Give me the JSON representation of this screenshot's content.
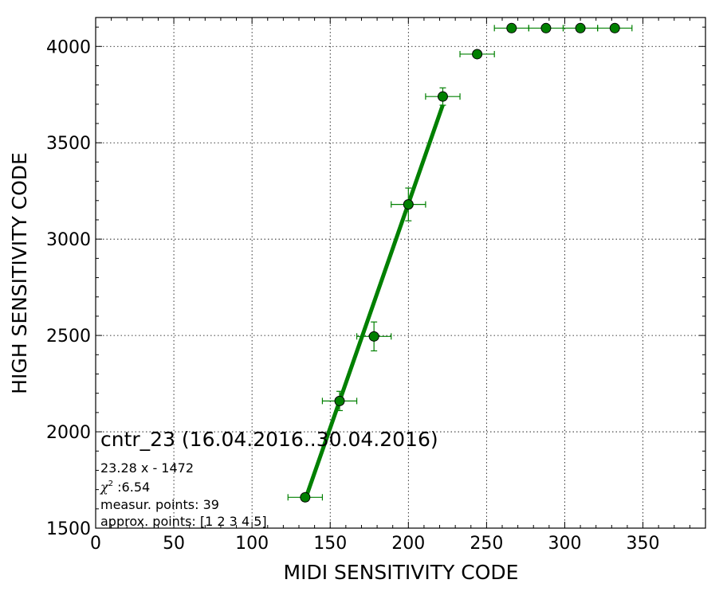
{
  "chart_data": {
    "type": "scatter",
    "xlabel": "MIDI SENSITIVITY CODE",
    "ylabel": "HIGH SENSITIVITY CODE",
    "xlim": [
      0,
      390
    ],
    "ylim": [
      1500,
      4150
    ],
    "xticks": [
      0,
      50,
      100,
      150,
      200,
      250,
      300,
      350
    ],
    "yticks": [
      1500,
      2000,
      2500,
      3000,
      3500,
      4000
    ],
    "grid": true,
    "series": [
      {
        "color": "#008000",
        "marker": "circle",
        "points": [
          {
            "x": 134,
            "y": 1660,
            "xerr": 11,
            "yerr": 20
          },
          {
            "x": 156,
            "y": 2160,
            "xerr": 11,
            "yerr": 50
          },
          {
            "x": 178,
            "y": 2495,
            "xerr": 11,
            "yerr": 75
          },
          {
            "x": 200,
            "y": 3180,
            "xerr": 11,
            "yerr": 85
          },
          {
            "x": 222,
            "y": 3740,
            "xerr": 11,
            "yerr": 45
          },
          {
            "x": 244,
            "y": 3960,
            "xerr": 11,
            "yerr": 0
          },
          {
            "x": 266,
            "y": 4095,
            "xerr": 11,
            "yerr": 0
          },
          {
            "x": 288,
            "y": 4095,
            "xerr": 11,
            "yerr": 0
          },
          {
            "x": 310,
            "y": 4095,
            "xerr": 11,
            "yerr": 0
          },
          {
            "x": 332,
            "y": 4095,
            "xerr": 11,
            "yerr": 0
          }
        ]
      }
    ],
    "fit_line": {
      "color": "#008000",
      "slope": 23.28,
      "intercept": -1472,
      "x_range": [
        134,
        222
      ]
    },
    "annotations": {
      "title": "cntr_23 (16.04.2016..30.04.2016)",
      "equation": "23.28 x - 1472",
      "chi_symbol": "χ",
      "chi_exp": "2",
      "chi_value": " :6.54",
      "measur_points": "measur. points: 39",
      "approx_points": "approx. points: [1 2 3 4 5]"
    }
  }
}
